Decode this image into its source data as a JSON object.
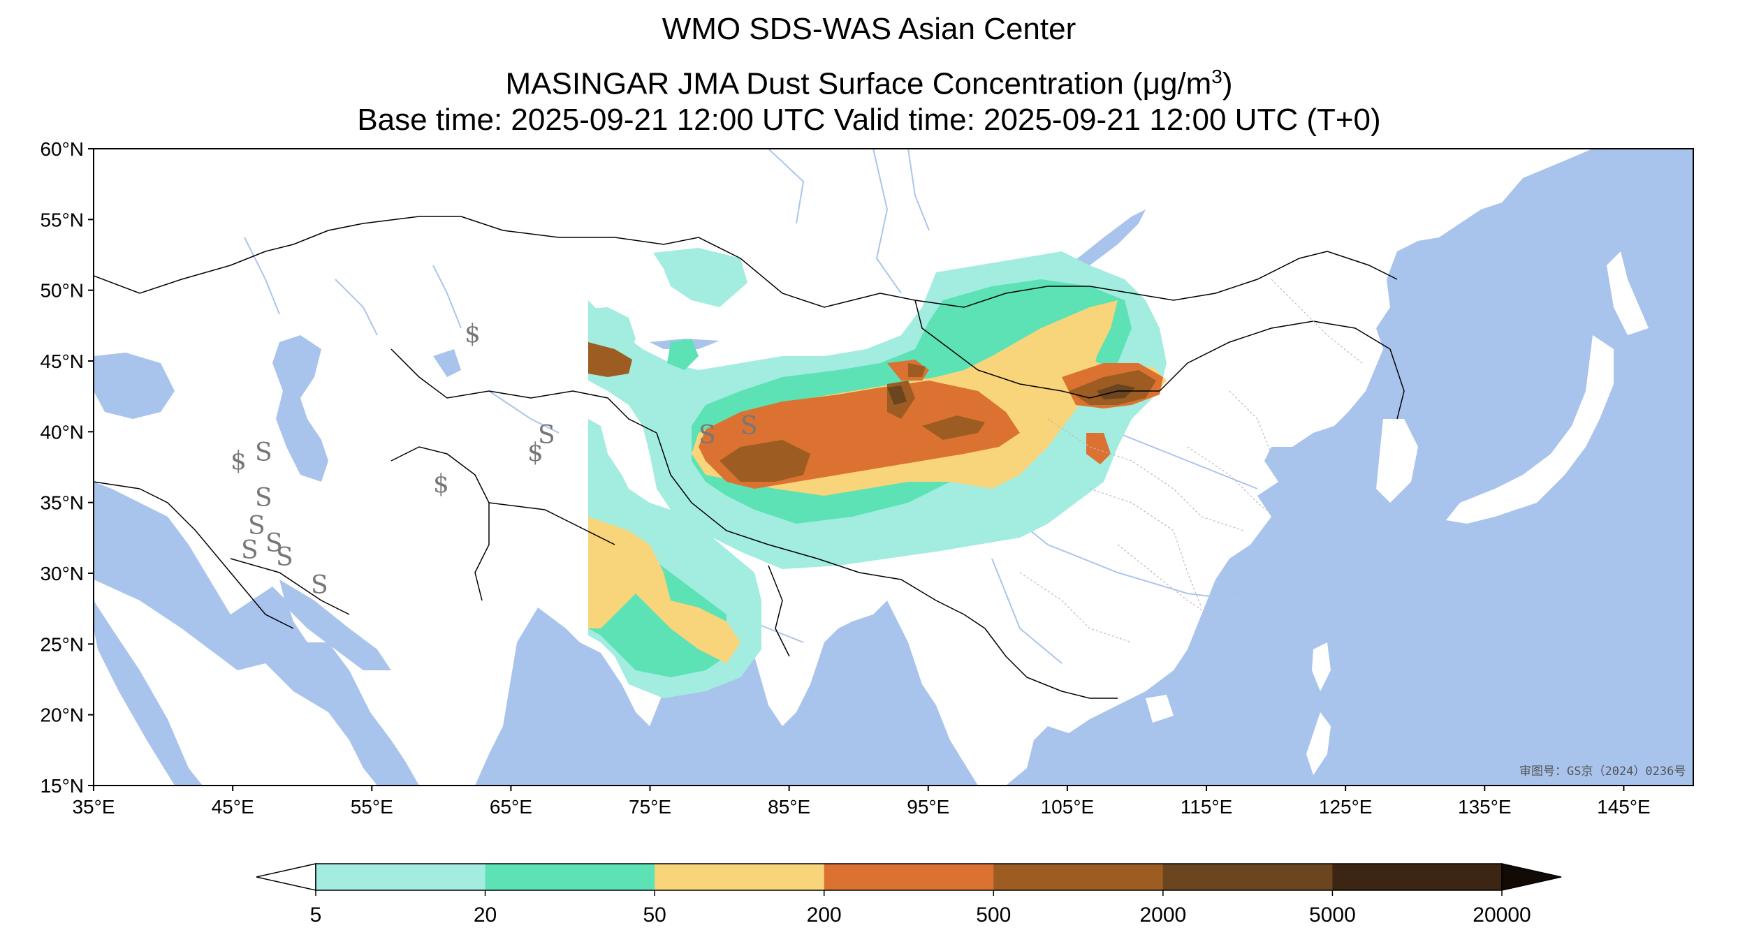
{
  "title": {
    "line1": "WMO SDS-WAS Asian Center",
    "line2_prefix": "MASINGAR JMA Dust Surface Concentration (",
    "line2_mu": "μ",
    "line2_unit": "g/m",
    "line2_exp": "3",
    "line2_suffix": ")",
    "line3": "Base time: 2025-09-21 12:00 UTC Valid time: 2025-09-21 12:00 UTC (T+0)"
  },
  "map": {
    "projection": "PlateCarree",
    "lon_range": [
      35,
      150
    ],
    "lat_range": [
      15,
      60
    ],
    "lon_ticks": [
      "35°E",
      "45°E",
      "55°E",
      "65°E",
      "75°E",
      "85°E",
      "95°E",
      "105°E",
      "115°E",
      "125°E",
      "135°E",
      "145°E"
    ],
    "lon_tick_values": [
      35,
      45,
      55,
      65,
      75,
      85,
      95,
      105,
      115,
      125,
      135,
      145
    ],
    "lat_ticks": [
      "60°N",
      "55°N",
      "50°N",
      "45°N",
      "40°N",
      "35°N",
      "30°N",
      "25°N",
      "20°N",
      "15°N"
    ],
    "lat_tick_values": [
      60,
      55,
      50,
      45,
      40,
      35,
      30,
      25,
      20,
      15
    ],
    "approval_text": "审图号：GS京（2024）0236号",
    "colors": {
      "ocean": "#a9c4ec",
      "land": "#ffffff",
      "river": "#aac6ec"
    }
  },
  "colorbar": {
    "levels": [
      "5",
      "20",
      "50",
      "200",
      "500",
      "2000",
      "5000",
      "20000"
    ],
    "colors": [
      "#a2ece0",
      "#5de2b6",
      "#f8d57a",
      "#db7231",
      "#9c5c22",
      "#6a4520",
      "#3c2512"
    ],
    "extend": "both"
  },
  "chart_data": {
    "type": "heatmap",
    "title": "WMO SDS-WAS Asian Center / MASINGAR JMA Dust Surface Concentration (μg/m3)",
    "xlabel": "",
    "ylabel": "",
    "xlim": [
      35,
      150
    ],
    "ylim": [
      15,
      60
    ],
    "units": "μg/m3",
    "levels": [
      5,
      20,
      50,
      200,
      500,
      2000,
      5000,
      20000
    ],
    "regions": [
      {
        "name_visible": false,
        "level_min": 5,
        "area": "Kazakhstan dust patch near 73-79E, 49-51N"
      },
      {
        "name_visible": false,
        "level_min": 5,
        "area": "Taklimakan-Mongolia band 75-111E, 33-49N"
      },
      {
        "name_visible": false,
        "level_min": 200,
        "area": "Taklimakan core 77-93E, 36-42N"
      },
      {
        "name_visible": false,
        "level_min": 500,
        "area": "Gobi core 106-110E, 41-45N"
      },
      {
        "name_visible": false,
        "level_min": 50,
        "area": "Thar desert 70-78E, 23-35N"
      }
    ]
  }
}
